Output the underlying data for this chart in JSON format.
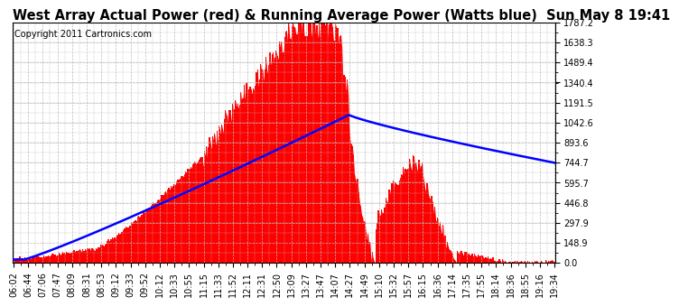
{
  "title": "West Array Actual Power (red) & Running Average Power (Watts blue)  Sun May 8 19:41",
  "copyright": "Copyright 2011 Cartronics.com",
  "yticks": [
    0.0,
    148.9,
    297.9,
    446.8,
    595.7,
    744.7,
    893.6,
    1042.6,
    1191.5,
    1340.4,
    1489.4,
    1638.3,
    1787.2
  ],
  "ymax": 1787.2,
  "ymin": 0.0,
  "bar_color": "#FF0000",
  "avg_color": "#0000FF",
  "background_color": "#FFFFFF",
  "grid_color": "#BBBBBB",
  "title_fontsize": 10.5,
  "copyright_fontsize": 7,
  "tick_fontsize": 7
}
